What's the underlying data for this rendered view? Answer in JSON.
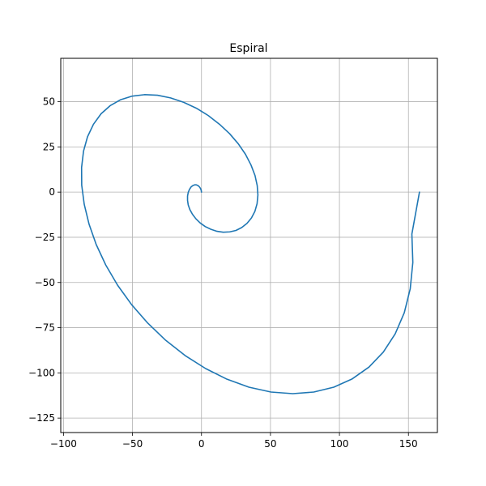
{
  "chart_data": {
    "type": "line",
    "title": "Espiral",
    "xlabel": "",
    "ylabel": "",
    "xlim": [
      -102,
      171
    ],
    "ylim": [
      -133,
      74
    ],
    "xticks": [
      -100,
      -50,
      0,
      50,
      100,
      150
    ],
    "yticks": [
      -125,
      -100,
      -75,
      -50,
      -25,
      0,
      25,
      50
    ],
    "grid": true,
    "series": [
      {
        "color": "#1f77b4",
        "x": [
          0,
          -0.2,
          -0.7,
          -1.5,
          -2.5,
          -3.7,
          -5.0,
          -6.3,
          -7.6,
          -8.7,
          -9.6,
          -10.1,
          -10.1,
          -9.6,
          -8.4,
          -6.5,
          -4.0,
          -0.9,
          2.8,
          6.9,
          11.3,
          15.8,
          20.5,
          25.0,
          29.2,
          33.0,
          36.2,
          38.7,
          40.3,
          40.9,
          40.4,
          38.8,
          35.9,
          31.9,
          26.7,
          20.4,
          13.1,
          5.0,
          -3.7,
          -13.0,
          -22.4,
          -31.9,
          -41.3,
          -50.2,
          -58.6,
          -66.2,
          -72.8,
          -78.3,
          -82.6,
          -85.5,
          -86.9,
          -86.8,
          -85.0,
          -81.5,
          -76.3,
          -69.4,
          -60.8,
          -50.6,
          -38.9,
          -25.9,
          -11.9,
          3.0,
          18.5,
          34.4,
          50.4,
          66.2,
          81.4,
          95.9,
          109.3,
          121.4,
          131.8,
          140.4,
          147.0,
          151.3,
          153.2,
          152.5,
          158
        ],
        "y": [
          0,
          1.0,
          2.0,
          2.9,
          3.6,
          4.0,
          4.0,
          3.6,
          2.8,
          1.5,
          -0.2,
          -2.2,
          -4.6,
          -7.1,
          -9.7,
          -12.3,
          -14.8,
          -17.1,
          -19.1,
          -20.6,
          -21.7,
          -22.2,
          -22.0,
          -21.2,
          -19.6,
          -17.3,
          -14.3,
          -10.7,
          -6.4,
          -1.6,
          3.6,
          9.2,
          15.0,
          20.9,
          26.7,
          32.3,
          37.5,
          42.3,
          46.4,
          49.7,
          52.1,
          53.6,
          53.9,
          53.1,
          51.1,
          47.8,
          43.3,
          37.5,
          30.6,
          22.6,
          13.6,
          3.8,
          -6.7,
          -17.7,
          -29.0,
          -40.3,
          -51.5,
          -62.3,
          -72.5,
          -82.0,
          -90.4,
          -97.6,
          -103.5,
          -107.9,
          -110.6,
          -111.5,
          -110.6,
          -107.9,
          -103.3,
          -96.8,
          -88.5,
          -78.4,
          -66.7,
          -53.5,
          -38.9,
          -23.2,
          0
        ]
      }
    ]
  }
}
